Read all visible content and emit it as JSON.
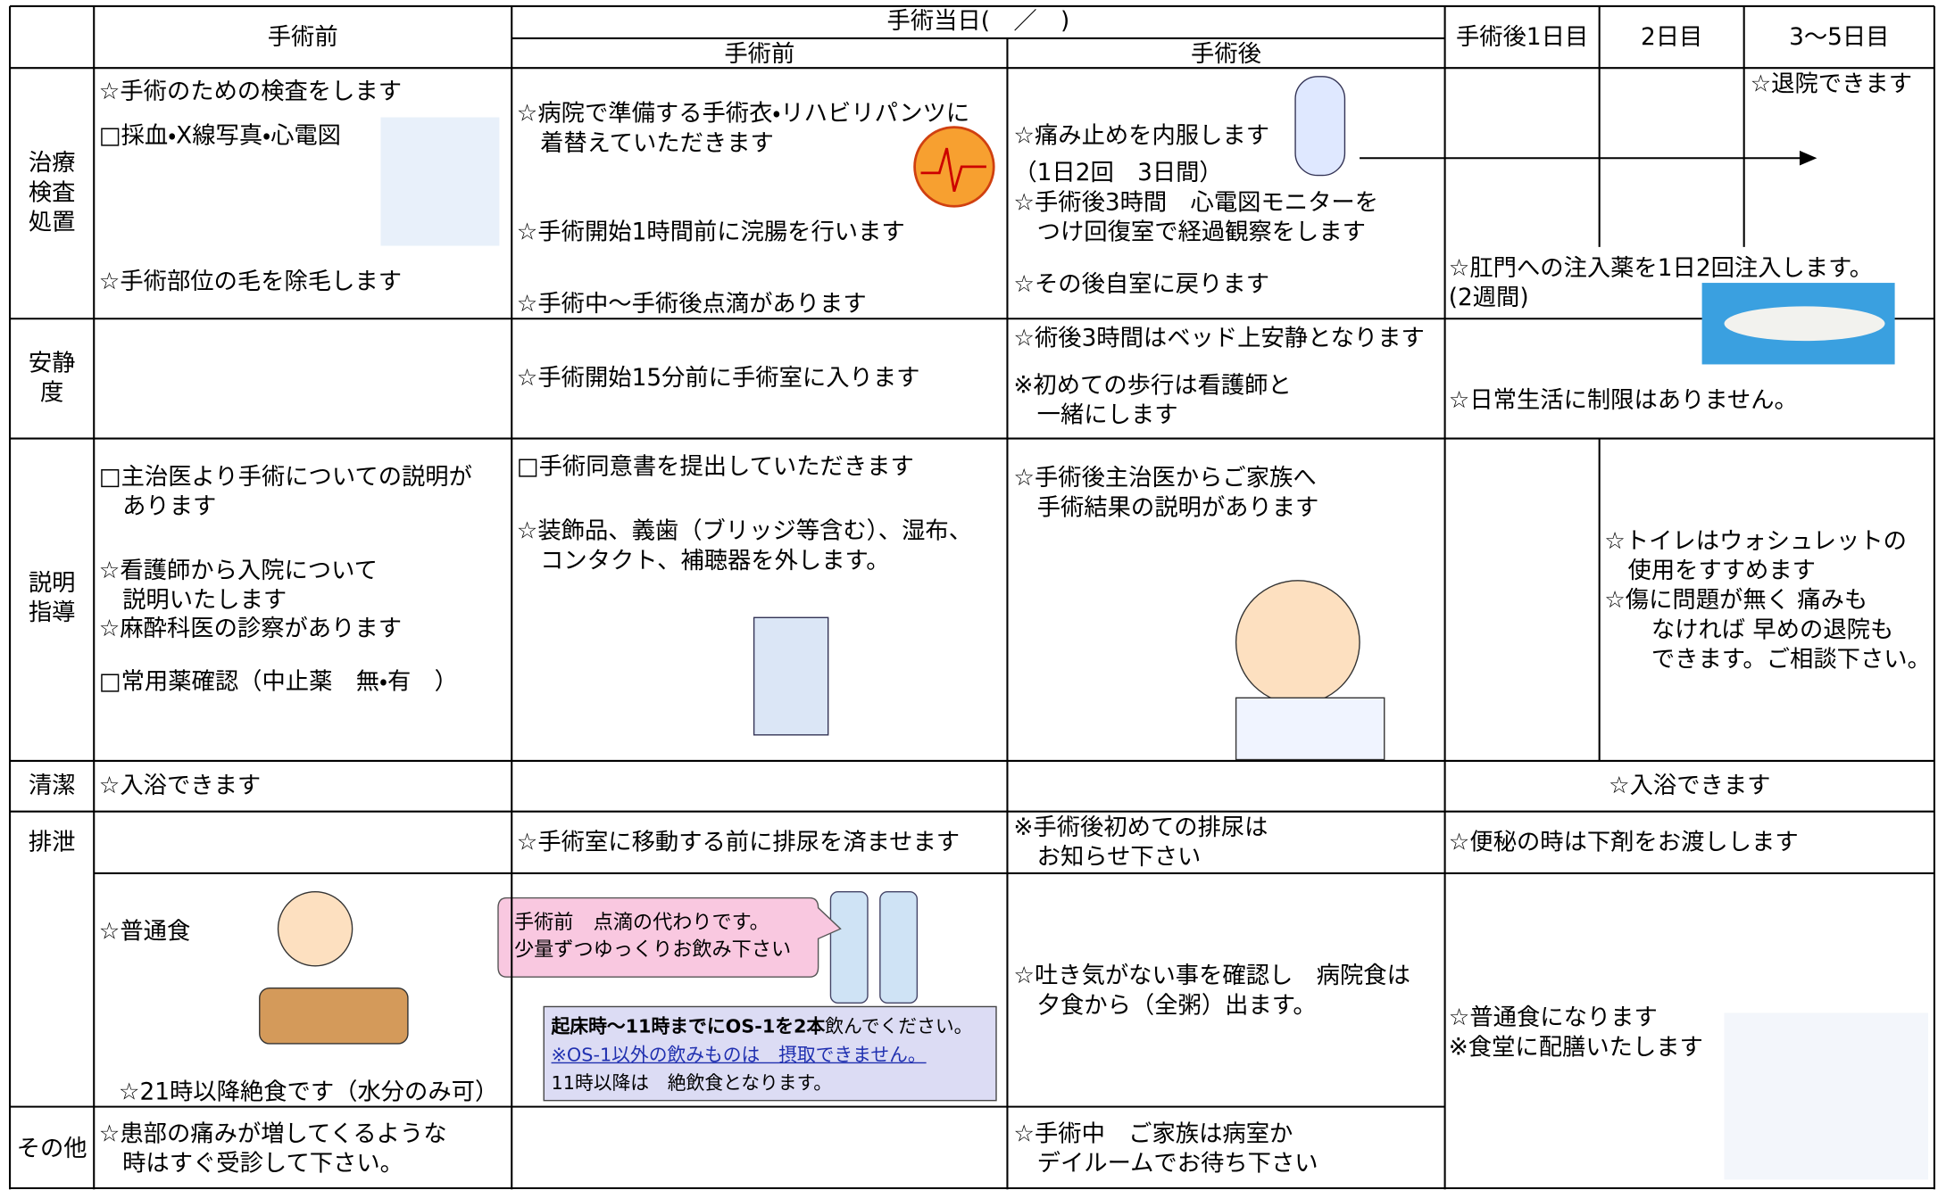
{
  "header": {
    "pre_op": "手術前",
    "surgery_day": "手術当日(　／　)",
    "surgery_day_pre": "手術前",
    "surgery_day_post": "手術後",
    "day1": "手術後1日目",
    "day2": "2日目",
    "day3_5": "3～5日目"
  },
  "rows": [
    {
      "label": "治療\n検査\n処置",
      "pre_op": [
        "☆手術のための検査をします",
        "□採血・X線写真・心電図",
        "☆手術部位の毛を除毛します"
      ],
      "surgery_day_pre": [
        "☆病院で準備する手術衣・リハビリパンツに\n　着替えていただきます",
        "☆手術開始1時間前に浣腸を行います",
        "☆手術中～手術後点滴があります"
      ],
      "surgery_day_post": [
        "☆痛み止めを内服します",
        "（1日2回　3日間）",
        "☆手術後3時間　心電図モニターを\n　つけ回復室で経過観察をします",
        "☆その後自室に戻ります"
      ],
      "post_op": [
        "☆退院できます",
        "☆肛門への注入薬を1日2回注入します。\n(2週間)"
      ]
    },
    {
      "label": "安静\n度",
      "surgery_day_pre": [
        "☆手術開始15分前に手術室に入ります"
      ],
      "surgery_day_post": [
        "☆術後3時間はベッド上安静となります",
        "※初めての歩行は看護師と\n　一緒にします"
      ],
      "post_op": [
        "☆日常生活に制限はありません。"
      ]
    },
    {
      "label": "説明\n指導",
      "pre_op": [
        "□主治医より手術についての説明が\n　あります",
        "☆看護師から入院について\n　説明いたします",
        "☆麻酔科医の診察があります",
        "□常用薬確認（中止薬　無・有　）"
      ],
      "surgery_day_pre": [
        "□手術同意書を提出していただきます",
        "☆装飾品、義歯（ブリッジ等含む）、湿布、\n　コンタクト、補聴器を外します。"
      ],
      "surgery_day_post": [
        "☆手術後主治医からご家族へ\n　手術結果の説明があります"
      ],
      "post_op": [
        "☆トイレはウォシュレットの\n　使用をすすめます",
        "☆傷に問題が無く 痛みも\n　　なければ 早めの退院も\n　　できます。ご相談下さい。"
      ]
    },
    {
      "label": "清潔",
      "pre_op": [
        "☆入浴できます"
      ],
      "post_op": [
        "☆入浴できます"
      ]
    },
    {
      "label": "排泄",
      "surgery_day_pre": [
        "☆手術室に移動する前に排尿を済ませます"
      ],
      "surgery_day_post": [
        "※手術後初めての排尿は\n　お知らせ下さい"
      ],
      "post_op": [
        "☆便秘の時は下剤をお渡しします"
      ]
    },
    {
      "pre_op": [
        "☆普通食",
        "☆21時以降絶食です（水分のみ可）"
      ],
      "surgery_day_pre": {
        "bubble": "手術前　点滴の代わりです。\n少量ずつゆっくりお飲み下さい",
        "note_bold": "起床時～11時までにOS-1を2本",
        "note_rest": "飲んでください。",
        "note_warning": "※OS-1以外の飲みものは　摂取できません。",
        "note_after": "11時以降は　絶飲食となります。"
      },
      "surgery_day_post": [
        "☆吐き気がない事を確認し　病院食は\n　夕食から（全粥）出ます。"
      ],
      "post_op": [
        "☆普通食になります\n※食堂に配膳いたします"
      ]
    },
    {
      "label": "その他",
      "pre_op": [
        "☆患部の痛みが増してくるような\n　時はすぐ受診して下さい。"
      ],
      "surgery_day_post": [
        "☆手術中　ご家族は病室か\n　デイルームでお待ち下さい"
      ]
    }
  ]
}
